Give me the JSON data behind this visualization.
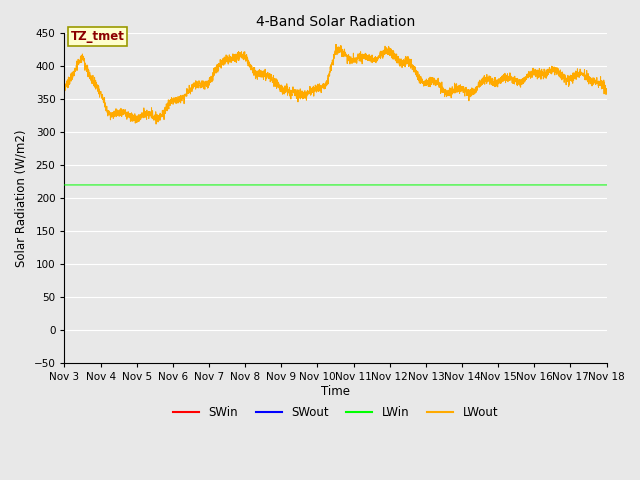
{
  "title": "4-Band Solar Radiation",
  "xlabel": "Time",
  "ylabel": "Solar Radiation (W/m2)",
  "annotation": "TZ_tmet",
  "ylim": [
    -50,
    450
  ],
  "xlim": [
    0,
    360
  ],
  "bg_color": "#e8e8e8",
  "grid_color": "#ffffff",
  "colors": {
    "SWin": "#ff0000",
    "SWout": "#0000ff",
    "LWin": "#00ff00",
    "LWout": "#ffaa00"
  },
  "x_tick_labels": [
    "Nov 3",
    "Nov 4",
    "Nov 5",
    "Nov 6",
    "Nov 7",
    "Nov 8",
    "Nov 9",
    "Nov 10",
    "Nov 11",
    "Nov 12",
    "Nov 13",
    "Nov 14",
    "Nov 15",
    "Nov 16",
    "Nov 17",
    "Nov 18"
  ],
  "x_tick_positions": [
    0,
    24,
    48,
    72,
    96,
    120,
    144,
    168,
    192,
    216,
    240,
    264,
    288,
    312,
    336,
    360
  ],
  "y_ticks": [
    -50,
    0,
    50,
    100,
    150,
    200,
    250,
    300,
    350,
    400,
    450
  ],
  "figsize": [
    6.4,
    4.8
  ],
  "dpi": 100
}
